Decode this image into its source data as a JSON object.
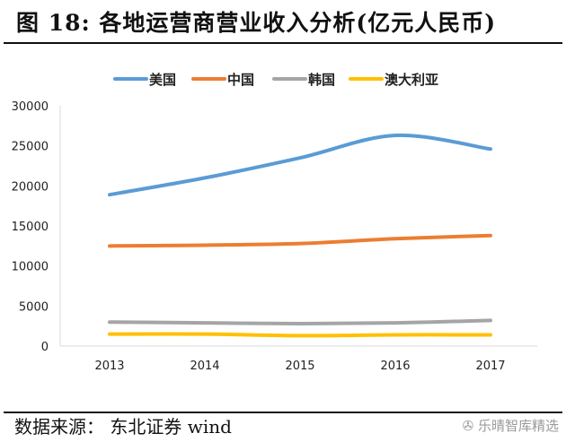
{
  "title": "图  18:  各地运营商营业收入分析(亿元人民币)",
  "source": "数据来源： 东北证券  wind",
  "watermark": "乐晴智库精选",
  "chart_data": {
    "type": "line",
    "title": "",
    "xlabel": "",
    "ylabel": "",
    "categories": [
      "2013",
      "2014",
      "2015",
      "2016",
      "2017"
    ],
    "ylim": [
      0,
      30000
    ],
    "yticks": [
      "0",
      "5000",
      "10000",
      "15000",
      "20000",
      "25000",
      "30000"
    ],
    "grid": false,
    "legend_position": "top",
    "smooth": true,
    "series": [
      {
        "name": "美国",
        "color": "#5b9bd5",
        "values": [
          18900,
          21000,
          23500,
          26300,
          24600
        ]
      },
      {
        "name": "中国",
        "color": "#ed7d31",
        "values": [
          12500,
          12600,
          12800,
          13400,
          13800
        ]
      },
      {
        "name": "韩国",
        "color": "#a5a5a5",
        "values": [
          3000,
          2900,
          2800,
          2900,
          3200
        ]
      },
      {
        "name": "澳大利亚",
        "color": "#ffc000",
        "values": [
          1500,
          1500,
          1300,
          1400,
          1400
        ]
      }
    ]
  }
}
